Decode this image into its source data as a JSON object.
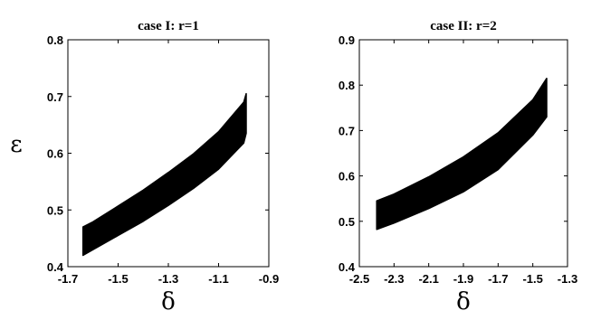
{
  "chart_data": [
    {
      "type": "area",
      "title": "case I: r=1",
      "xlabel": "δ",
      "ylabel": "ε",
      "xlim": [
        -1.7,
        -0.9
      ],
      "ylim": [
        0.4,
        0.8
      ],
      "xticks": [
        -1.7,
        -1.5,
        -1.3,
        -1.1,
        -0.9
      ],
      "yticks": [
        0.4,
        0.5,
        0.6,
        0.7,
        0.8
      ],
      "xtick_labels": [
        "-1.7",
        "-1.5",
        "-1.3",
        "-1.1",
        "-0.9"
      ],
      "ytick_labels": [
        "0.4",
        "0.5",
        "0.6",
        "0.7",
        "0.8"
      ],
      "grid": false,
      "fill_color": "#000000",
      "series": [
        {
          "x": [
            -1.64,
            -1.6,
            -1.5,
            -1.4,
            -1.3,
            -1.2,
            -1.1,
            -1.0,
            -0.99
          ],
          "upper": [
            0.47,
            0.479,
            0.507,
            0.535,
            0.566,
            0.599,
            0.638,
            0.69,
            0.705
          ],
          "lower": [
            0.42,
            0.43,
            0.455,
            0.48,
            0.508,
            0.538,
            0.572,
            0.618,
            0.635
          ]
        }
      ]
    },
    {
      "type": "area",
      "title": "case II: r=2",
      "xlabel": "δ",
      "ylabel": "",
      "xlim": [
        -2.5,
        -1.3
      ],
      "ylim": [
        0.4,
        0.9
      ],
      "xticks": [
        -2.5,
        -2.3,
        -2.1,
        -1.9,
        -1.7,
        -1.5,
        -1.3
      ],
      "yticks": [
        0.4,
        0.5,
        0.6,
        0.7,
        0.8,
        0.9
      ],
      "xtick_labels": [
        "-2.5",
        "-2.3",
        "-2.1",
        "-1.9",
        "-1.7",
        "-1.5",
        "-1.3"
      ],
      "ytick_labels": [
        "0.4",
        "0.5",
        "0.6",
        "0.7",
        "0.8",
        "0.9"
      ],
      "grid": false,
      "fill_color": "#000000",
      "series": [
        {
          "x": [
            -2.4,
            -2.3,
            -2.1,
            -1.9,
            -1.7,
            -1.5,
            -1.42
          ],
          "upper": [
            0.545,
            0.56,
            0.598,
            0.642,
            0.695,
            0.768,
            0.815
          ],
          "lower": [
            0.482,
            0.496,
            0.528,
            0.565,
            0.614,
            0.69,
            0.73
          ]
        }
      ]
    }
  ]
}
